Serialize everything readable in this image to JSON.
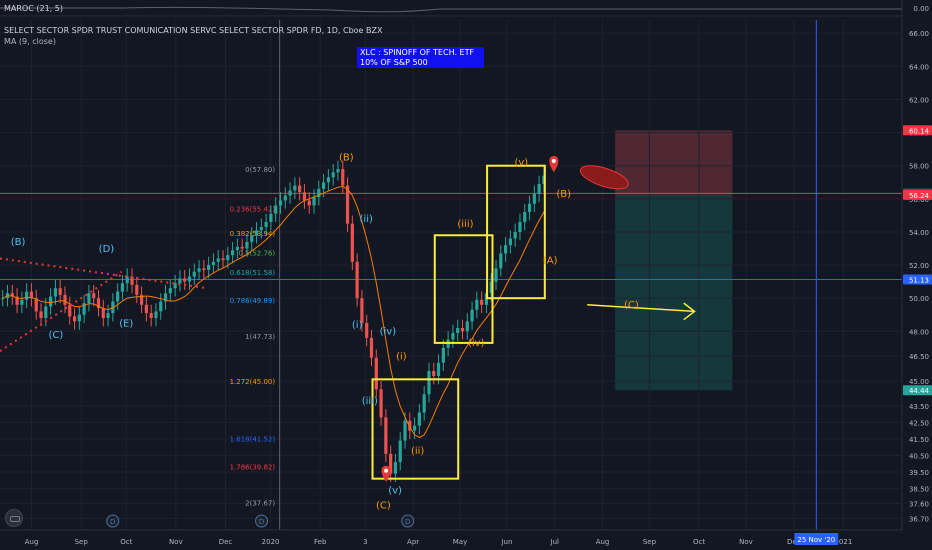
{
  "header": {
    "indicator_label": "MAROC (21, 5)",
    "symbol_title": "SELECT SECTOR SPDR TRUST COMUNICATION SERVC SELECT SECTOR SPDR FD, 1D, Cboe BZX",
    "ma_label": "MA (9, close)"
  },
  "note": {
    "line1": "XLC : SPINOFF OF TECH. ETF",
    "line2": "10% OF S&P 500"
  },
  "colors": {
    "background": "#131722",
    "candle_up": "#26a69a",
    "candle_down": "#ef5350",
    "ma_line": "#f57c00",
    "box": "#ffeb3b",
    "trendline": "#e53935",
    "wave_label": "#ff9800",
    "fib_label": "#9598a1",
    "stop_zone": "#5c2b36",
    "target_zone": "#163c3f",
    "price_tag_red": "#f23645",
    "price_tag_teal": "#26a69a",
    "price_tag_blue": "#2962ff"
  },
  "chart_data": {
    "type": "candlestick",
    "ylim": [
      36.0,
      66.8
    ],
    "x_ticks": [
      "Aug",
      "Sep",
      "Oct",
      "Nov",
      "Dec",
      "2020",
      "Feb",
      "3",
      "Apr",
      "May",
      "Jun",
      "Jul",
      "Aug",
      "Sep",
      "Oct",
      "Nov",
      "Dec",
      "2021"
    ],
    "y_ticks": [
      "66.00",
      "64.00",
      "62.00",
      "60.00",
      "58.00",
      "56.00",
      "54.00",
      "52.00",
      "50.00",
      "48.00",
      "46.50",
      "45.00",
      "43.50",
      "42.50",
      "41.50",
      "40.50",
      "39.50",
      "38.50",
      "37.60",
      "36.70"
    ],
    "indicator_axis_label": "0.00",
    "price_tags": [
      {
        "label": "60.14",
        "value": 60.14,
        "color": "#f23645"
      },
      {
        "label": "56.33",
        "value": 56.33,
        "color": "#434651"
      },
      {
        "label": "56.24",
        "value": 56.24,
        "color": "#f23645"
      },
      {
        "label": "51.13",
        "value": 51.13,
        "color": "#2962ff"
      },
      {
        "label": "44.44",
        "value": 44.44,
        "color": "#26a69a"
      }
    ],
    "date_tag": "25 Nov '20",
    "fib_levels": [
      {
        "label": "0(57.80)",
        "value": 57.8
      },
      {
        "label": "0.236(55.42)",
        "value": 55.42
      },
      {
        "label": "0.382(53.94)",
        "value": 53.94
      },
      {
        "label": "0.5(52.76)",
        "value": 52.76
      },
      {
        "label": "0.618(51.58)",
        "value": 51.58
      },
      {
        "label": "0.786(49.89)",
        "value": 49.89
      },
      {
        "label": "1(47.73)",
        "value": 47.73
      },
      {
        "label": "1.272(45.00)",
        "value": 45.0
      },
      {
        "label": "1.618(41.52)",
        "value": 41.52
      },
      {
        "label": "1.786(39.82)",
        "value": 39.82
      },
      {
        "label": "2(37.67)",
        "value": 37.67
      }
    ],
    "wave_labels": [
      {
        "text": "(B)",
        "t": 0.02,
        "value": 53.2,
        "color": "#4fc3f7"
      },
      {
        "text": "(D)",
        "t": 0.118,
        "value": 52.8,
        "color": "#4fc3f7"
      },
      {
        "text": "(C)",
        "t": 0.062,
        "value": 47.6,
        "color": "#4fc3f7"
      },
      {
        "text": "(E)",
        "t": 0.14,
        "value": 48.3,
        "color": "#4fc3f7"
      },
      {
        "text": "(B)",
        "t": 0.384,
        "value": 58.3,
        "color": "#ff9800"
      },
      {
        "text": "(ii)",
        "t": 0.406,
        "value": 54.6,
        "color": "#4fc3f7"
      },
      {
        "text": "(i)",
        "t": 0.396,
        "value": 48.2,
        "color": "#4fc3f7"
      },
      {
        "text": "(iv)",
        "t": 0.43,
        "value": 47.8,
        "color": "#4fc3f7"
      },
      {
        "text": "(iii)",
        "t": 0.41,
        "value": 43.6,
        "color": "#4fc3f7"
      },
      {
        "text": "(i)",
        "t": 0.445,
        "value": 46.3,
        "color": "#ff9800"
      },
      {
        "text": "(ii)",
        "t": 0.463,
        "value": 40.6,
        "color": "#ff9800"
      },
      {
        "text": "(iii)",
        "t": 0.516,
        "value": 54.3,
        "color": "#ff9800"
      },
      {
        "text": "(iv)",
        "t": 0.528,
        "value": 47.1,
        "color": "#ff9800"
      },
      {
        "text": "(v)",
        "t": 0.578,
        "value": 58.0,
        "color": "#ff9800"
      },
      {
        "text": "(B)",
        "t": 0.625,
        "value": 56.1,
        "color": "#ff9800"
      },
      {
        "text": "(A)",
        "t": 0.61,
        "value": 52.1,
        "color": "#ff9800"
      },
      {
        "text": "(C)",
        "t": 0.7,
        "value": 49.4,
        "color": "#ff9800"
      },
      {
        "text": "(v)",
        "t": 0.438,
        "value": 38.2,
        "color": "#4fc3f7"
      },
      {
        "text": "(C)",
        "t": 0.425,
        "value": 37.3,
        "color": "#ff9800"
      }
    ],
    "series": [
      {
        "name": "price",
        "values": [
          50.0,
          50.3,
          50.1,
          49.6,
          49.9,
          50.4,
          50.0,
          49.2,
          48.8,
          49.5,
          50.1,
          50.6,
          50.2,
          49.6,
          48.9,
          48.6,
          49.0,
          49.7,
          50.3,
          50.0,
          49.4,
          48.8,
          49.1,
          49.8,
          50.4,
          50.9,
          51.3,
          50.8,
          50.2,
          49.6,
          49.1,
          48.8,
          49.2,
          49.8,
          50.3,
          50.6,
          50.9,
          51.2,
          51.0,
          51.3,
          51.6,
          51.8,
          51.7,
          52.0,
          52.2,
          52.4,
          52.3,
          52.6,
          52.9,
          53.1,
          53.0,
          53.4,
          53.8,
          54.1,
          54.3,
          54.6,
          55.1,
          55.6,
          55.9,
          56.2,
          56.5,
          56.8,
          56.4,
          55.9,
          55.6,
          56.1,
          56.6,
          57.0,
          57.3,
          57.6,
          57.8,
          56.8,
          54.5,
          52.2,
          50.0,
          48.5,
          47.6,
          46.4,
          44.5,
          42.8,
          40.6,
          39.4,
          40.1,
          41.4,
          42.6,
          42.0,
          42.3,
          43.1,
          44.2,
          45.6,
          45.3,
          46.1,
          47.0,
          47.5,
          47.9,
          48.2,
          48.0,
          48.6,
          49.3,
          49.9,
          49.6,
          50.3,
          51.0,
          51.8,
          52.7,
          53.2,
          53.6,
          54.0,
          54.6,
          55.2,
          55.7,
          56.3,
          56.9,
          57.4
        ]
      }
    ]
  }
}
